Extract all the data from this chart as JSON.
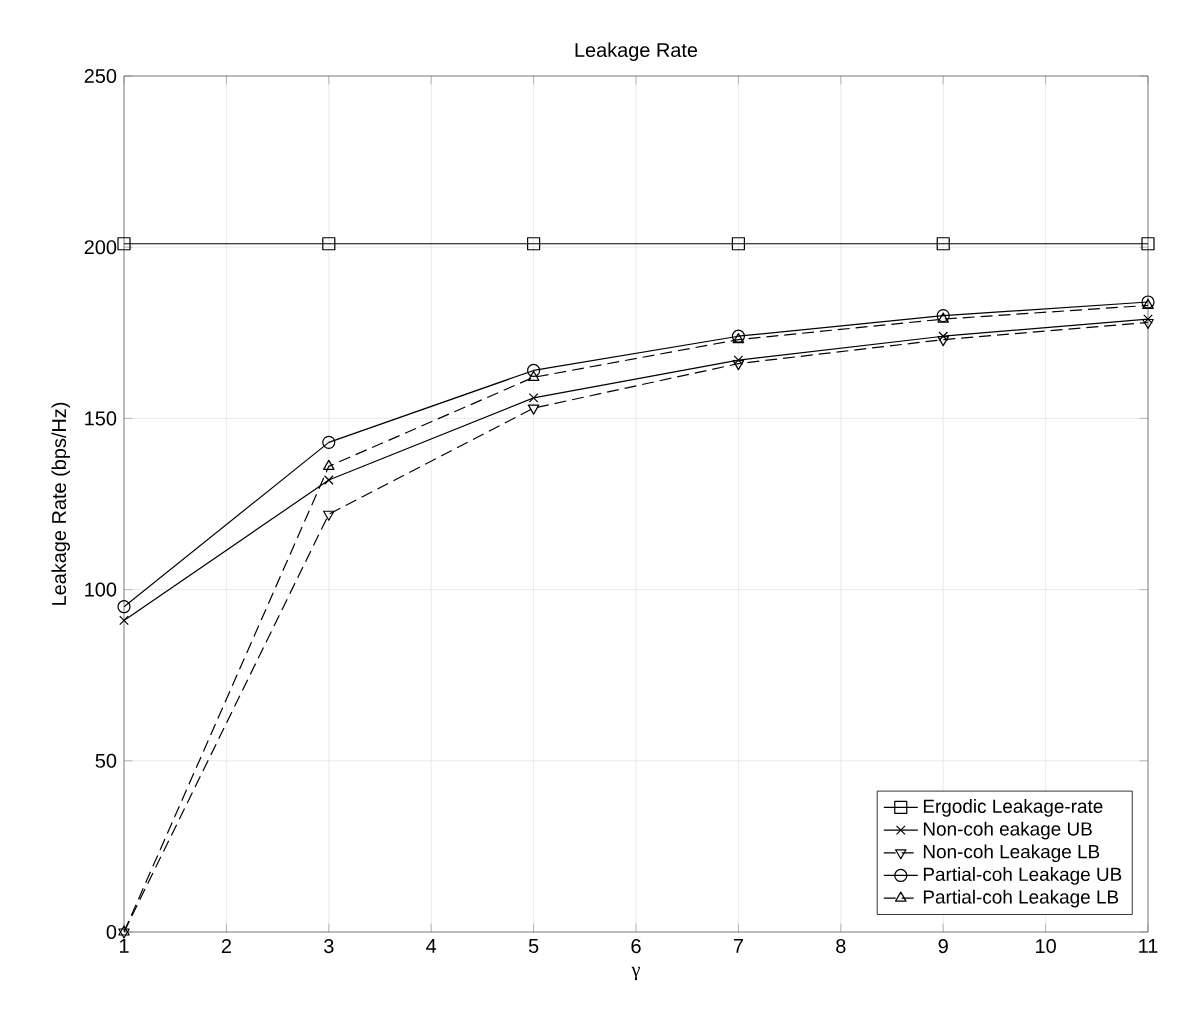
{
  "chart_data": {
    "type": "line",
    "title": "Leakage Rate",
    "xlabel": "γ",
    "ylabel": "Leakage Rate (bps/Hz)",
    "x": [
      1,
      3,
      5,
      7,
      9,
      11
    ],
    "xlim": [
      1,
      11
    ],
    "xticks": [
      1,
      2,
      3,
      4,
      5,
      6,
      7,
      8,
      9,
      10,
      11
    ],
    "ylim": [
      0,
      250
    ],
    "yticks": [
      0,
      50,
      100,
      150,
      200,
      250
    ],
    "grid": true,
    "legend": "bottom right",
    "series": [
      {
        "name": "Ergodic Leakage-rate",
        "color": "#000000",
        "marker": "square",
        "line_style": "solid",
        "values": [
          201,
          201,
          201,
          201,
          201,
          201
        ]
      },
      {
        "name": "Non-coh eakage UB",
        "color": "#000000",
        "marker": "cross",
        "line_style": "solid",
        "values": [
          91,
          132,
          156,
          167,
          174,
          179
        ]
      },
      {
        "name": "Non-coh Leakage LB",
        "color": "#000000",
        "marker": "triangle-down",
        "line_style": "dashed",
        "values": [
          0,
          122,
          153,
          166,
          173,
          178
        ]
      },
      {
        "name": "Partial-coh Leakage UB",
        "color": "#000000",
        "marker": "circle",
        "line_style": "solid",
        "values": [
          95,
          143,
          164,
          174,
          180,
          184
        ]
      },
      {
        "name": "Partial-coh Leakage LB",
        "color": "#000000",
        "marker": "triangle",
        "line_style": "dashed",
        "values": [
          0,
          136,
          162,
          173,
          179,
          183
        ]
      }
    ]
  }
}
